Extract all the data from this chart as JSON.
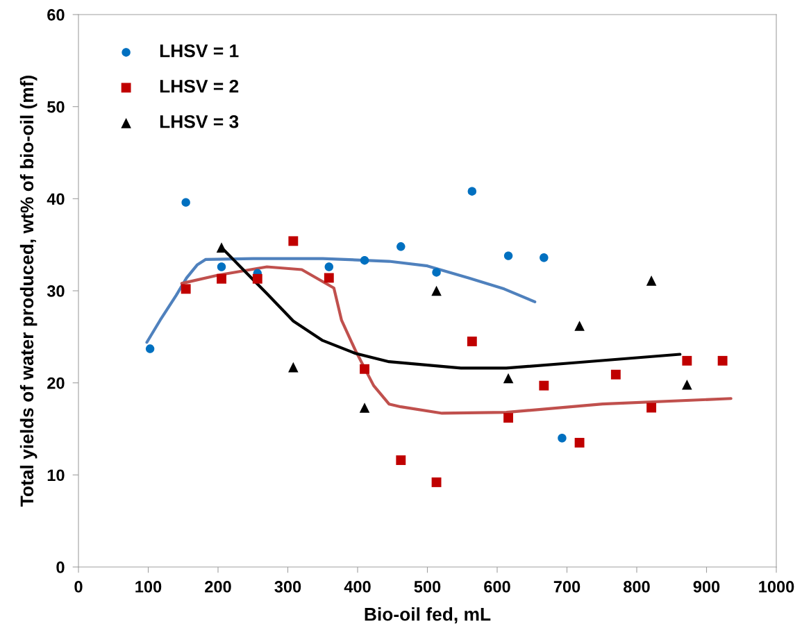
{
  "chart_data": {
    "type": "scatter",
    "xlabel": "Bio-oil fed, mL",
    "ylabel": "Total yields of water produced, wt% of bio-oil (mf)",
    "xlim": [
      0,
      1000
    ],
    "xticks": [
      0,
      100,
      200,
      300,
      400,
      500,
      600,
      700,
      800,
      900,
      1000
    ],
    "ylim": [
      0,
      60
    ],
    "yticks": [
      0,
      10,
      20,
      30,
      40,
      50,
      60
    ],
    "grid": false,
    "legend": "top left",
    "series": [
      {
        "name": "LHSV = 1",
        "color": "#0070c0",
        "marker": "circle",
        "x": [
          102.6,
          153.9,
          205,
          256.5,
          359,
          410,
          462,
          513,
          564,
          616,
          667,
          693
        ],
        "values": [
          23.7,
          39.6,
          32.6,
          31.9,
          32.6,
          33.3,
          34.8,
          32.0,
          40.8,
          33.8,
          33.6,
          14.0
        ]
      },
      {
        "name": "LHSV = 2",
        "color": "#c00000",
        "marker": "square",
        "x": [
          153.9,
          205,
          256.5,
          307.8,
          359,
          410,
          462,
          513,
          564,
          616,
          667,
          718,
          770,
          821,
          872,
          923
        ],
        "values": [
          30.2,
          31.3,
          31.3,
          35.4,
          31.4,
          21.5,
          11.6,
          9.2,
          24.5,
          16.2,
          19.7,
          13.5,
          20.9,
          17.3,
          22.4,
          22.4
        ]
      },
      {
        "name": "LHSV = 3",
        "color": "#000000",
        "marker": "triangle",
        "x": [
          205,
          307.8,
          410,
          513,
          616,
          718,
          821,
          872
        ],
        "values": [
          34.7,
          21.7,
          17.3,
          30.0,
          20.5,
          26.2,
          31.1,
          19.8
        ]
      },
      {
        "type": "line",
        "color": "#4f81bd",
        "x": [
          98,
          117,
          140,
          155,
          170,
          182,
          250,
          350,
          445,
          500,
          559,
          610,
          654
        ],
        "values": [
          24.4,
          26.8,
          29.5,
          31.4,
          32.8,
          33.4,
          33.5,
          33.5,
          33.2,
          32.7,
          31.4,
          30.2,
          28.8
        ]
      },
      {
        "type": "line",
        "color": "#c0504d",
        "x": [
          148,
          200,
          270,
          320,
          366,
          377,
          397,
          423,
          445,
          462,
          521,
          613,
          751,
          935
        ],
        "values": [
          30.8,
          31.7,
          32.6,
          32.3,
          30.3,
          26.8,
          23.5,
          19.7,
          17.7,
          17.4,
          16.7,
          16.8,
          17.7,
          18.3
        ]
      },
      {
        "type": "line",
        "color": "#000000",
        "x": [
          205,
          240,
          270,
          308,
          350,
          397,
          445,
          548,
          613,
          713,
          862
        ],
        "values": [
          34.7,
          32.0,
          29.7,
          26.7,
          24.6,
          23.2,
          22.3,
          21.6,
          21.6,
          22.2,
          23.1
        ]
      }
    ]
  }
}
